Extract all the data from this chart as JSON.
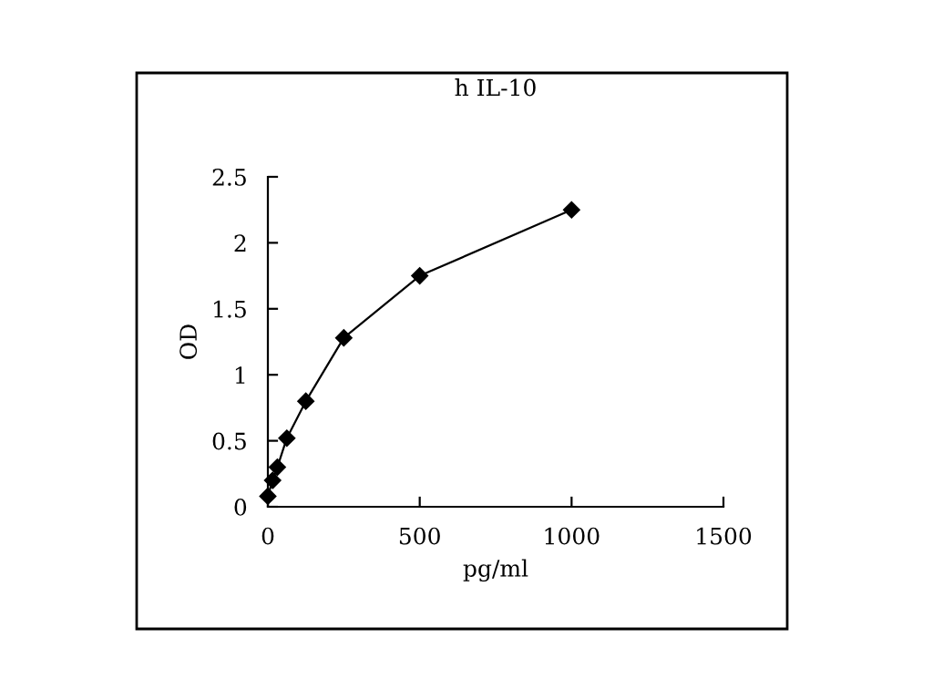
{
  "chart_data": {
    "type": "line",
    "title": "h IL-10",
    "xlabel": "pg/ml",
    "ylabel": "OD",
    "x": [
      0,
      15.6,
      31.25,
      62.5,
      125,
      250,
      500,
      1000
    ],
    "series": [
      {
        "color": "#000000",
        "values": [
          0.08,
          0.2,
          0.3,
          0.52,
          0.8,
          1.28,
          1.75,
          2.25
        ]
      }
    ],
    "xlim": [
      0,
      1500
    ],
    "xticks": [
      0,
      500,
      1000,
      1500
    ],
    "ylim": [
      0,
      2.5
    ],
    "yticks": [
      0,
      0.5,
      1,
      1.5,
      2,
      2.5
    ],
    "marker": "diamond",
    "line_style": "solid",
    "grid": false,
    "legend": false
  }
}
